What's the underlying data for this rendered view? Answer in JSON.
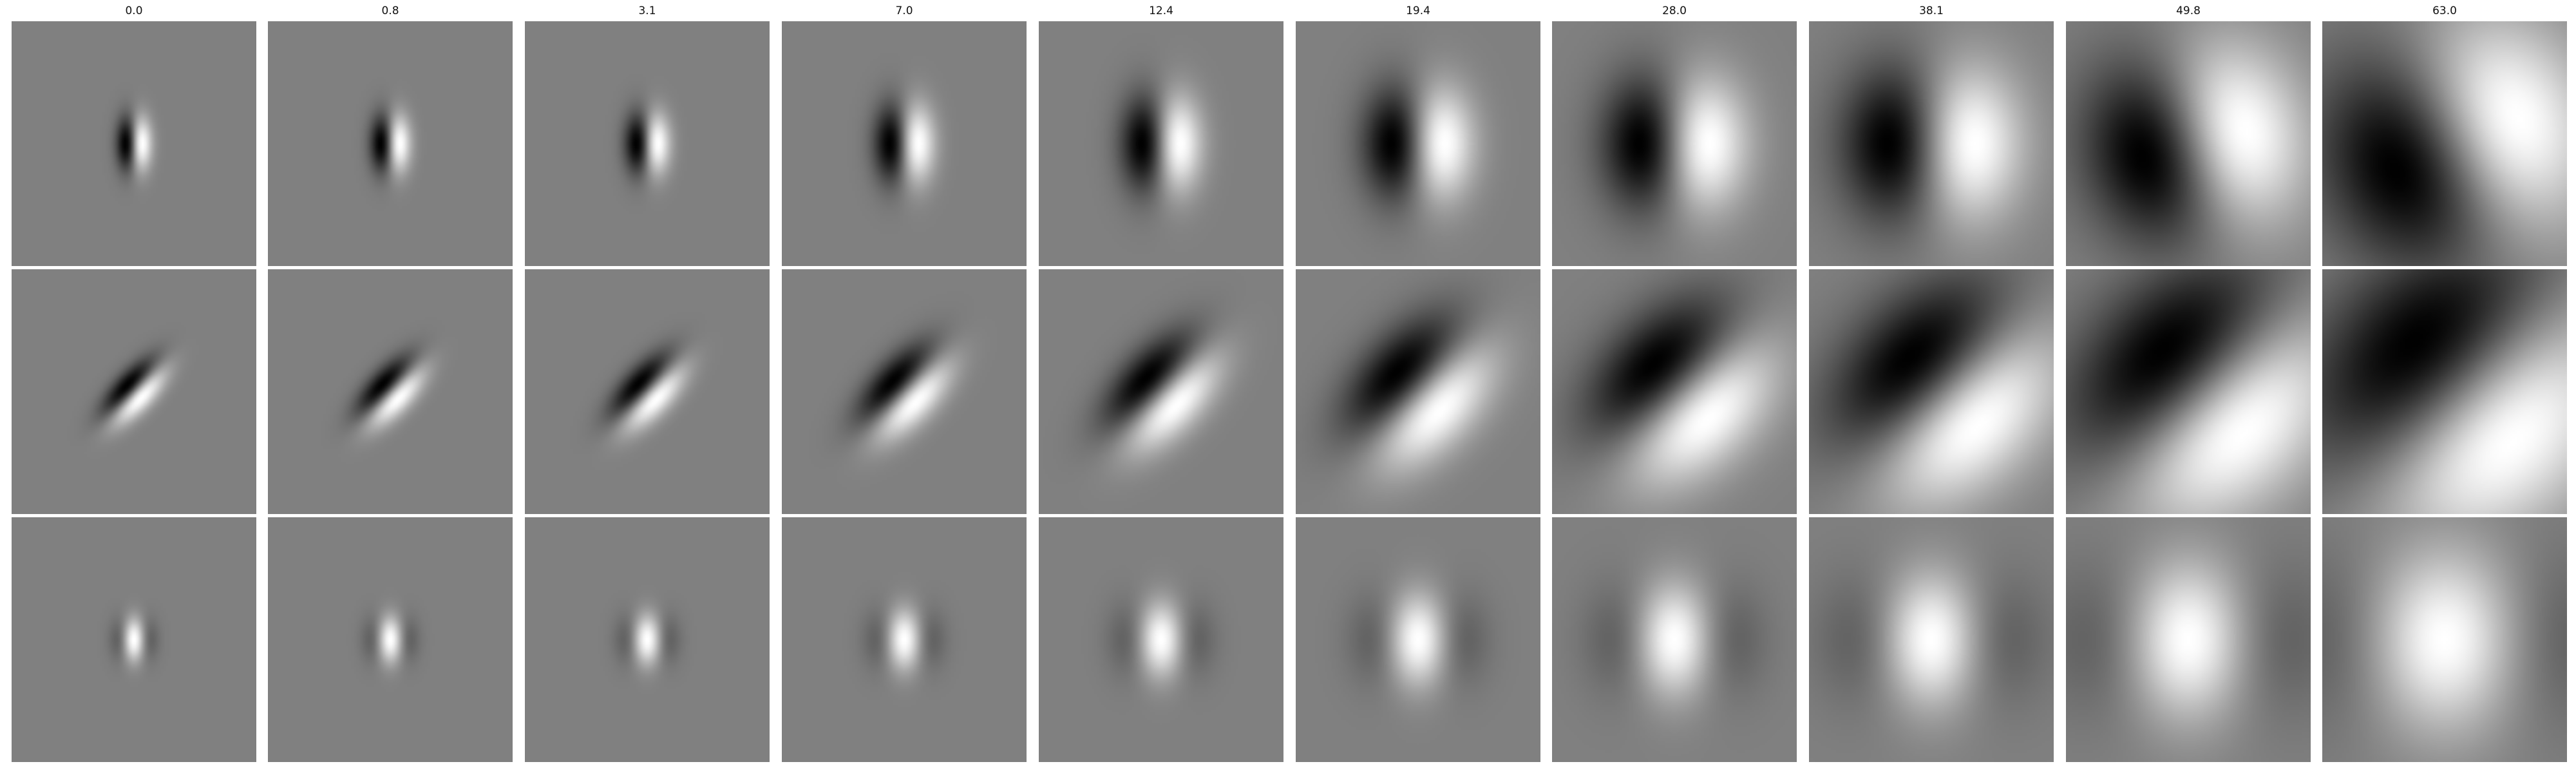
{
  "figure": {
    "column_titles": [
      "0.0",
      "0.8",
      "3.1",
      "7.0",
      "12.4",
      "19.4",
      "28.0",
      "38.1",
      "49.8",
      "63.0"
    ],
    "rows": [
      {
        "panels": [
          {
            "angle": 0,
            "sx": 0.07,
            "sy": 0.15,
            "cx": 0.0,
            "kind": "odd"
          },
          {
            "angle": 0,
            "sx": 0.08,
            "sy": 0.16,
            "cx": 0.0,
            "kind": "odd"
          },
          {
            "angle": 0,
            "sx": 0.09,
            "sy": 0.17,
            "cx": 0.0,
            "kind": "odd"
          },
          {
            "angle": 0,
            "sx": 0.12,
            "sy": 0.22,
            "cx": 0.0,
            "kind": "odd"
          },
          {
            "angle": 0,
            "sx": 0.16,
            "sy": 0.27,
            "cx": 0.0,
            "kind": "odd"
          },
          {
            "angle": 0,
            "sx": 0.22,
            "sy": 0.32,
            "cx": 0.0,
            "kind": "odd"
          },
          {
            "angle": 0,
            "sx": 0.29,
            "sy": 0.38,
            "cx": 0.0,
            "kind": "odd"
          },
          {
            "angle": 0,
            "sx": 0.36,
            "sy": 0.44,
            "cx": 0.0,
            "kind": "odd"
          },
          {
            "angle": -0.25,
            "sx": 0.44,
            "sy": 0.52,
            "cx": 0.05,
            "kind": "odd"
          },
          {
            "angle": -0.4,
            "sx": 0.55,
            "sy": 0.62,
            "cx": 0.1,
            "kind": "odd"
          }
        ]
      },
      {
        "panels": [
          {
            "angle": 0.75,
            "sx": 0.08,
            "sy": 0.2,
            "cx": 0.0,
            "kind": "odd"
          },
          {
            "angle": 0.75,
            "sx": 0.09,
            "sy": 0.21,
            "cx": 0.0,
            "kind": "odd"
          },
          {
            "angle": 0.75,
            "sx": 0.1,
            "sy": 0.23,
            "cx": 0.0,
            "kind": "odd"
          },
          {
            "angle": 0.75,
            "sx": 0.13,
            "sy": 0.28,
            "cx": 0.0,
            "kind": "odd"
          },
          {
            "angle": 0.75,
            "sx": 0.17,
            "sy": 0.34,
            "cx": 0.0,
            "kind": "odd"
          },
          {
            "angle": 0.75,
            "sx": 0.24,
            "sy": 0.42,
            "cx": 0.0,
            "kind": "odd"
          },
          {
            "angle": 0.8,
            "sx": 0.32,
            "sy": 0.5,
            "cx": 0.05,
            "kind": "odd"
          },
          {
            "angle": 0.8,
            "sx": 0.4,
            "sy": 0.6,
            "cx": 0.1,
            "kind": "odd"
          },
          {
            "angle": 0.8,
            "sx": 0.48,
            "sy": 0.7,
            "cx": 0.12,
            "kind": "odd"
          },
          {
            "angle": 0.8,
            "sx": 0.58,
            "sy": 0.8,
            "cx": 0.15,
            "kind": "odd"
          }
        ]
      },
      {
        "panels": [
          {
            "angle": 0,
            "sx": 0.06,
            "sy": 0.12,
            "cx": 0.0,
            "kind": "even"
          },
          {
            "angle": 0,
            "sx": 0.07,
            "sy": 0.13,
            "cx": 0.0,
            "kind": "even"
          },
          {
            "angle": 0,
            "sx": 0.08,
            "sy": 0.14,
            "cx": 0.0,
            "kind": "even"
          },
          {
            "angle": 0,
            "sx": 0.1,
            "sy": 0.17,
            "cx": 0.0,
            "kind": "even"
          },
          {
            "angle": 0,
            "sx": 0.13,
            "sy": 0.21,
            "cx": 0.0,
            "kind": "even"
          },
          {
            "angle": 0,
            "sx": 0.17,
            "sy": 0.26,
            "cx": 0.0,
            "kind": "even"
          },
          {
            "angle": 0,
            "sx": 0.22,
            "sy": 0.32,
            "cx": 0.0,
            "kind": "even"
          },
          {
            "angle": 0,
            "sx": 0.28,
            "sy": 0.38,
            "cx": 0.0,
            "kind": "even"
          },
          {
            "angle": 0,
            "sx": 0.35,
            "sy": 0.45,
            "cx": 0.0,
            "kind": "even"
          },
          {
            "angle": 0,
            "sx": 0.44,
            "sy": 0.52,
            "cx": 0.0,
            "kind": "even"
          }
        ]
      }
    ]
  }
}
